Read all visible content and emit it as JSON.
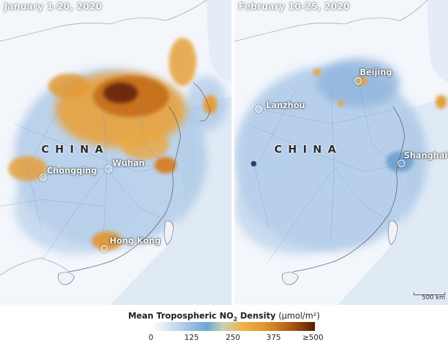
{
  "panels": {
    "left": {
      "title": "January 1-20, 2020",
      "country_label": "CHINA",
      "cities": [
        "Chongqing",
        "Wuhan",
        "Hong Kong"
      ]
    },
    "right": {
      "title": "February 10-25, 2020",
      "country_label": "CHINA",
      "cities": [
        "Beijing",
        "Lanzhou",
        "Shanghai"
      ],
      "scale_bar": "500 km"
    }
  },
  "legend": {
    "title_prefix": "Mean Tropospheric NO",
    "title_sub": "2",
    "title_suffix": " Density ",
    "unit": "(μmol/m²)",
    "ticks": [
      "0",
      "125",
      "250",
      "375",
      "≥500"
    ]
  },
  "colors": {
    "low": "#ffffff",
    "mid_low": "#6fa3d6",
    "mid_high": "#f0b24a",
    "high": "#5a1e06"
  }
}
